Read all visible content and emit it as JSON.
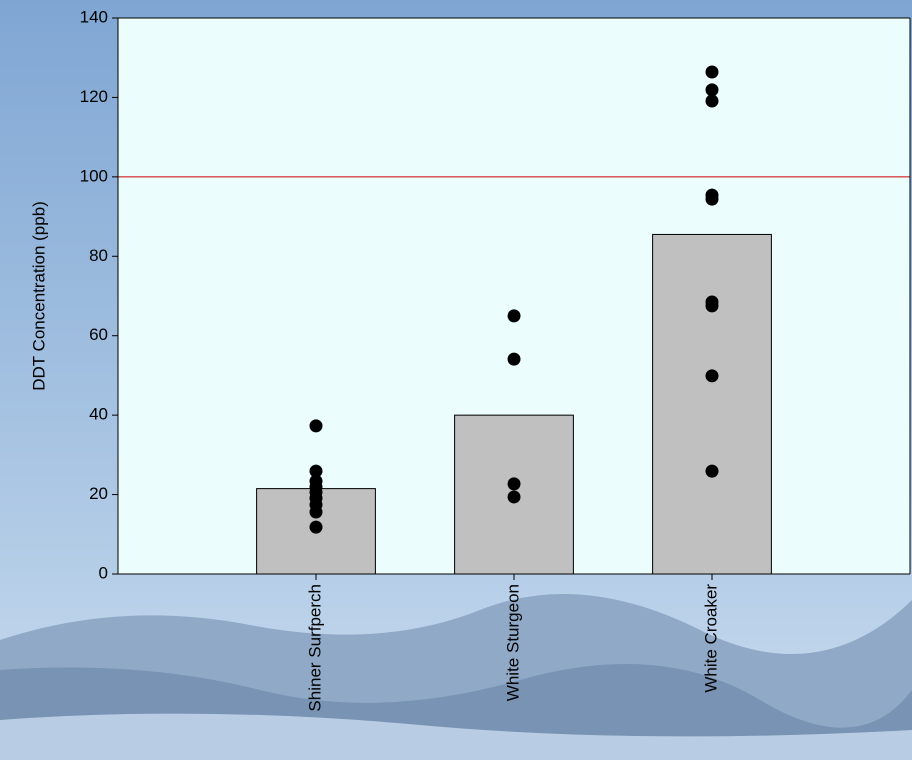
{
  "chart_data": {
    "type": "bar",
    "y_label": "DDT Concentration (ppb)",
    "categories": [
      "Shiner Surfperch",
      "White Sturgeon",
      "White Croaker"
    ],
    "values": [
      21.5,
      40,
      85.5
    ],
    "bar_color": "#c0c0c0",
    "point_values": [
      [
        37.3,
        25.9,
        23.4,
        21.9,
        20.6,
        19.1,
        17.4,
        15.6,
        11.8
      ],
      [
        65,
        54.1,
        22.7,
        19.4
      ],
      [
        126.4,
        121.9,
        119.1,
        95.4,
        94.4,
        68.5,
        67.5,
        49.9,
        25.9
      ]
    ],
    "point_color": "#000000",
    "reference_line": {
      "value": 100,
      "color": "#cc0000"
    },
    "ylim": [
      0,
      140
    ],
    "yticks": [
      0,
      20,
      40,
      60,
      80,
      100,
      120,
      140
    ]
  }
}
